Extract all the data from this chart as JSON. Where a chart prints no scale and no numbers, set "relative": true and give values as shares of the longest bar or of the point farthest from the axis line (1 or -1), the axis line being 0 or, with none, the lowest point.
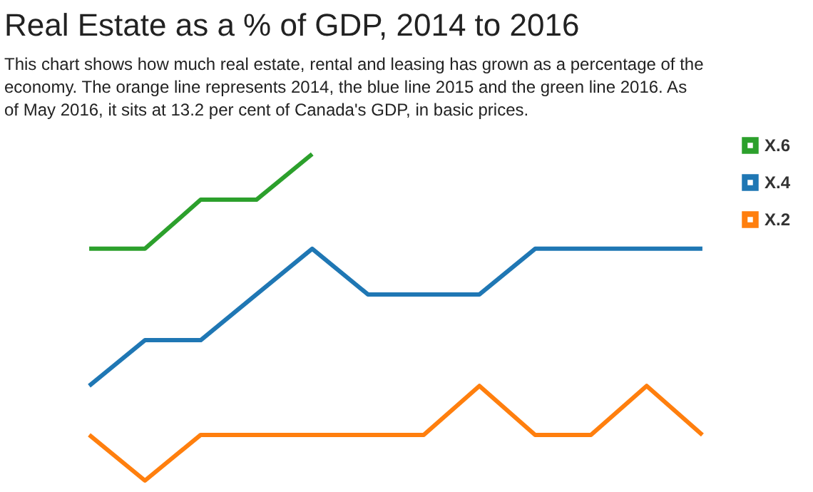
{
  "chart_data": {
    "type": "line",
    "title": "Real Estate as a % of GDP, 2014 to 2016",
    "subtitle": "This chart shows how much real estate, rental and leasing has grown as a percentage of the economy. The orange line represents 2014, the blue line 2015 and the green line 2016. As of May 2016, it sits at 13.2 per cent of Canada's GDP, in basic prices.",
    "categories": [
      null,
      null,
      null,
      null,
      null,
      null,
      null,
      null,
      null,
      null,
      null,
      null
    ],
    "relative": true,
    "series": [
      {
        "name": "X.6",
        "color": "#2ca02c",
        "values": [
          0.71,
          0.71,
          0.86,
          0.86,
          1,
          null,
          null,
          null,
          null,
          null,
          null,
          null
        ]
      },
      {
        "name": "X.4",
        "color": "#1f77b4",
        "values": [
          0.29,
          0.43,
          0.43,
          0.57,
          0.71,
          0.57,
          0.57,
          0.57,
          0.71,
          0.71,
          0.71,
          0.71
        ]
      },
      {
        "name": "X.2",
        "color": "#ff7f0e",
        "values": [
          0.14,
          0,
          0.14,
          0.14,
          0.14,
          0.14,
          0.14,
          0.29,
          0.14,
          0.14,
          0.29,
          0.14
        ]
      }
    ],
    "legend": "top right"
  }
}
